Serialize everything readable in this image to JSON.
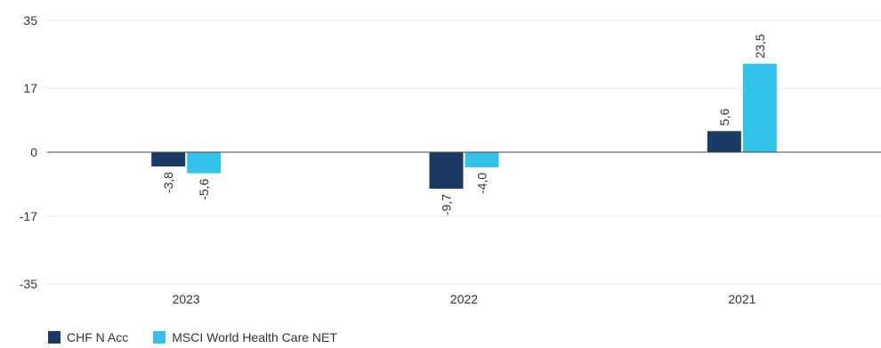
{
  "chart_data": {
    "type": "bar",
    "categories": [
      "2023",
      "2022",
      "2021"
    ],
    "series": [
      {
        "name": "CHF N Acc",
        "values": [
          -3.8,
          -9.7,
          5.6
        ],
        "labels": [
          "-3,8",
          "-9,7",
          "5,6"
        ],
        "color": "#1b3a63"
      },
      {
        "name": "MSCI World Health Care NET",
        "values": [
          -5.6,
          -4.0,
          23.5
        ],
        "labels": [
          "-5,6",
          "-4,0",
          "23,5"
        ],
        "color": "#33c3ea"
      }
    ],
    "y_ticks": [
      35,
      17,
      0,
      -17,
      -35
    ],
    "ylim": [
      -35,
      35
    ],
    "grid": true,
    "legend_position": "bottom-left"
  }
}
